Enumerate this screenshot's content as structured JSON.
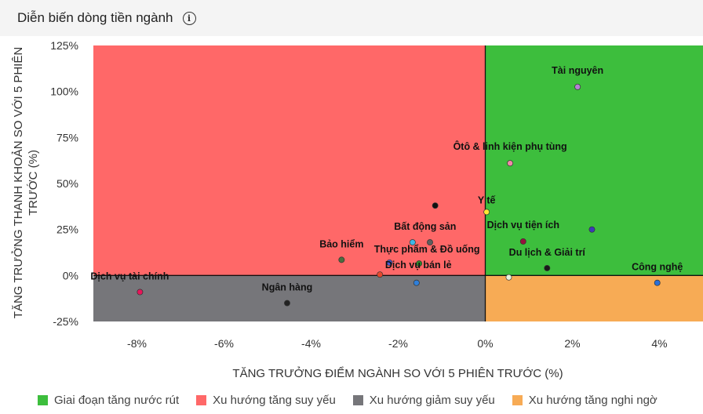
{
  "header": {
    "title": "Diễn biến dòng tiền ngành",
    "info_icon": "info-icon"
  },
  "chart_data": {
    "type": "scatter",
    "xlabel": "TĂNG TRƯỞNG ĐIỂM NGÀNH SO VỚI 5 PHIÊN TRƯỚC (%)",
    "ylabel": "TĂNG TRƯỞNG THANH KHOẢN SO VỚI 5 PHIÊN TRƯỚC (%)",
    "xlim": [
      -9,
      5
    ],
    "ylim": [
      -25,
      125
    ],
    "x_ticks": [
      -8,
      -6,
      -4,
      -2,
      0,
      2,
      4
    ],
    "x_tick_labels": [
      "-8%",
      "-6%",
      "-4%",
      "-2%",
      "0%",
      "2%",
      "4%"
    ],
    "y_ticks": [
      125,
      100,
      75,
      50,
      25,
      0,
      -25
    ],
    "y_tick_labels": [
      "125%",
      "100%",
      "75%",
      "50%",
      "25%",
      "0%",
      "-25%"
    ],
    "quadrants": [
      {
        "name": "Giai đoạn tăng nước rút",
        "color": "#3dbe3d",
        "position": "top-right"
      },
      {
        "name": "Xu hướng tăng suy yếu",
        "color": "#ff6868",
        "position": "top-left"
      },
      {
        "name": "Xu hướng giảm suy yếu",
        "color": "#76767a",
        "position": "bottom-left"
      },
      {
        "name": "Xu hướng tăng nghi ngờ",
        "color": "#f7ab55",
        "position": "bottom-right"
      }
    ],
    "points": [
      {
        "label": "Tài nguyên",
        "x": 2.12,
        "y": 102.5,
        "color": "#b681d6"
      },
      {
        "label": "Ôtô & linh kiện phụ tùng",
        "x": 0.57,
        "y": 61,
        "color": "#f08aa8"
      },
      {
        "label": "",
        "x": -1.15,
        "y": 38,
        "color": "#111111"
      },
      {
        "label": "Y tế",
        "x": 0.03,
        "y": 34.5,
        "color": "#ffe833"
      },
      {
        "label": "Bất động sản",
        "x": -1.67,
        "y": 18,
        "color": "#3fb7e6"
      },
      {
        "label": "",
        "x": -1.27,
        "y": 18,
        "color": "#5e5e5e"
      },
      {
        "label": "Dịch vụ tiện ích",
        "x": 0.87,
        "y": 18.5,
        "color": "#96123c"
      },
      {
        "label": "",
        "x": 2.45,
        "y": 25,
        "color": "#3c3cb8"
      },
      {
        "label": "Bảo hiểm",
        "x": -3.3,
        "y": 8.5,
        "color": "#4c6e3e"
      },
      {
        "label": "Thực phẩm & Đồ uống",
        "x": -1.52,
        "y": 6.5,
        "color": "#2b8a2b"
      },
      {
        "label": "",
        "x": -2.2,
        "y": 7,
        "color": "#4a5ad6"
      },
      {
        "label": "Dịch vụ bán lẻ",
        "x": -2.42,
        "y": 0.5,
        "color": "#e54a2e"
      },
      {
        "label": "",
        "x": -1.58,
        "y": -4,
        "color": "#2f7fd9"
      },
      {
        "label": "Du lịch & Giải trí",
        "x": 1.42,
        "y": 4,
        "color": "#1a1a1a"
      },
      {
        "label": "",
        "x": 0.54,
        "y": -1,
        "color": "#e8f5e0"
      },
      {
        "label": "Công nghệ",
        "x": 3.95,
        "y": -4,
        "color": "#2a6fd6"
      },
      {
        "label": "Dịch vụ tài chính",
        "x": -7.93,
        "y": -9,
        "color": "#e8155a"
      },
      {
        "label": "Ngân hàng",
        "x": -4.55,
        "y": -15,
        "color": "#222222"
      }
    ]
  },
  "legend": [
    {
      "label": "Giai đoạn tăng nước rút",
      "color": "#3dbe3d"
    },
    {
      "label": "Xu hướng tăng suy yếu",
      "color": "#ff6868"
    },
    {
      "label": "Xu hướng giảm suy yếu",
      "color": "#76767a"
    },
    {
      "label": "Xu hướng tăng nghi ngờ",
      "color": "#f7ab55"
    }
  ]
}
